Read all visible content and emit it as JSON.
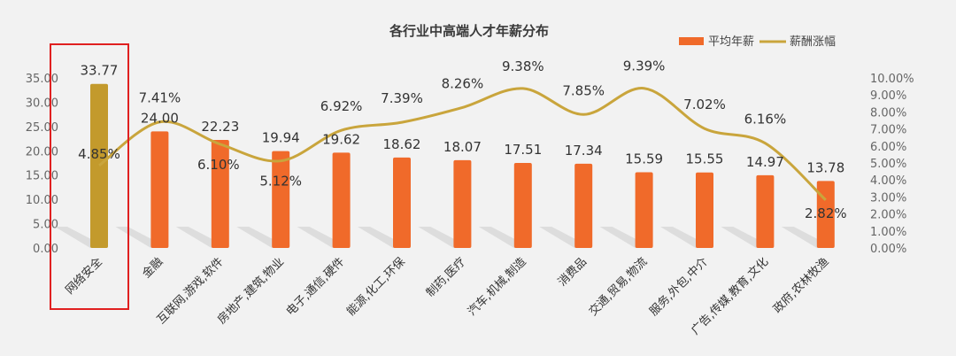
{
  "chart_data": {
    "type": "bar",
    "title": "各行业中高端人才年薪分布",
    "categories": [
      "网络安全",
      "金融",
      "互联网,游戏,软件",
      "房地产,建筑,物业",
      "电子,通信,硬件",
      "能源,化工,环保",
      "制药,医疗",
      "汽车,机械,制造",
      "消费品",
      "交通,贸易,物流",
      "服务,外包,中介",
      "广告,传媒,教育,文化",
      "政府,农林牧渔"
    ],
    "series": [
      {
        "name": "平均年薪",
        "type": "bar",
        "axis": "left",
        "values": [
          33.77,
          24.0,
          22.23,
          19.94,
          19.62,
          18.62,
          18.07,
          17.51,
          17.34,
          15.59,
          15.55,
          14.97,
          13.78
        ],
        "labels": [
          "33.77",
          "24.00",
          "22.23",
          "19.94",
          "19.62",
          "18.62",
          "18.07",
          "17.51",
          "17.34",
          "15.59",
          "15.55",
          "14.97",
          "13.78"
        ]
      },
      {
        "name": "薪酬涨幅",
        "type": "line",
        "axis": "right",
        "values": [
          4.85,
          7.41,
          6.1,
          5.12,
          6.92,
          7.39,
          8.26,
          9.38,
          7.85,
          9.39,
          7.02,
          6.16,
          2.82
        ],
        "labels": [
          "4.85%",
          "7.41%",
          "6.10%",
          "5.12%",
          "6.92%",
          "7.39%",
          "8.26%",
          "9.38%",
          "7.85%",
          "9.39%",
          "7.02%",
          "6.16%",
          "2.82%"
        ]
      }
    ],
    "left_axis": {
      "ylim": [
        0,
        35
      ],
      "ticks": [
        "0.00",
        "5.00",
        "10.00",
        "15.00",
        "20.00",
        "25.00",
        "30.00",
        "35.00"
      ]
    },
    "right_axis": {
      "ylim": [
        0,
        10
      ],
      "ticks": [
        "0.00%",
        "1.00%",
        "2.00%",
        "3.00%",
        "4.00%",
        "5.00%",
        "6.00%",
        "7.00%",
        "8.00%",
        "9.00%",
        "10.00%"
      ]
    },
    "legend_position": "top-right",
    "highlight_category": "网络安全",
    "colors": {
      "bar": "#f06a2a",
      "bar_highlight": "#c39a2c",
      "line": "#c9a53c",
      "highlight_box": "#e02020",
      "background": "#f2f2f2",
      "shadow": "#cccccc"
    }
  }
}
